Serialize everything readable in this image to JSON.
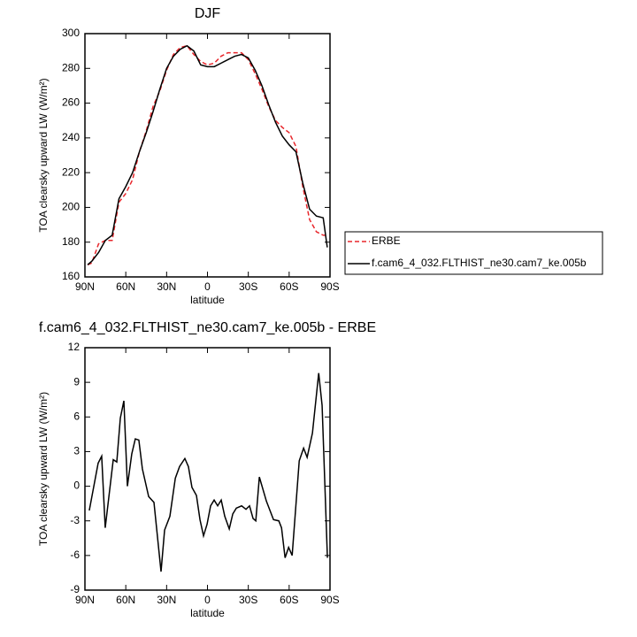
{
  "chart_data": [
    {
      "type": "line",
      "title": "DJF",
      "xlabel": "latitude",
      "ylabel": "TOA clearsky upward LW (W/m²)",
      "x": [
        88,
        85,
        80,
        75,
        70,
        65,
        60,
        55,
        50,
        45,
        40,
        35,
        30,
        25,
        20,
        15,
        10,
        5,
        0,
        -5,
        -10,
        -15,
        -20,
        -25,
        -30,
        -35,
        -40,
        -45,
        -50,
        -55,
        -60,
        -65,
        -70,
        -75,
        -80,
        -85,
        -88
      ],
      "series": [
        {
          "name": "ERBE",
          "color": "#e8262b",
          "dashed": true,
          "values": [
            167,
            168,
            179,
            181,
            181,
            203,
            208,
            216,
            232,
            244,
            258,
            267,
            279,
            288,
            292,
            293,
            288,
            284,
            282,
            283,
            287,
            289,
            289,
            289,
            285,
            277,
            268,
            258,
            250,
            246,
            243,
            235,
            212,
            193,
            186,
            184,
            184
          ]
        },
        {
          "name": "f.cam6_4_032.FLTHIST_ne30.cam7_ke.005b",
          "color": "#000000",
          "dashed": false,
          "values": [
            167,
            169,
            174,
            181,
            184,
            205,
            212,
            220,
            232,
            243,
            255,
            268,
            280,
            287,
            291,
            293,
            290,
            282,
            281,
            281,
            283,
            285,
            287,
            288,
            286,
            279,
            270,
            259,
            249,
            241,
            236,
            232,
            214,
            199,
            195,
            194,
            177
          ]
        }
      ],
      "xlim": [
        90,
        -90
      ],
      "xticks": [
        {
          "value": 90,
          "label": "90N"
        },
        {
          "value": 60,
          "label": "60N"
        },
        {
          "value": 30,
          "label": "30N"
        },
        0,
        {
          "value": -30,
          "label": "30S"
        },
        {
          "value": -60,
          "label": "60S"
        },
        {
          "value": -90,
          "label": "90S"
        }
      ],
      "ylim": [
        160,
        300
      ],
      "yticks": [
        160,
        180,
        200,
        220,
        240,
        260,
        280,
        300
      ],
      "legend": "outside-right"
    },
    {
      "type": "line",
      "title": "f.cam6_4_032.FLTHIST_ne30.cam7_ke.005b - ERBE",
      "xlabel": "latitude",
      "ylabel": "TOA clearsky upward LW (W/m²)",
      "x": [
        86.8,
        80.3,
        77.7,
        75.1,
        69.2,
        66.6,
        64.0,
        61.4,
        58.8,
        55.6,
        53.0,
        50.4,
        47.8,
        43.2,
        39.3,
        34.1,
        31.5,
        27.6,
        23.6,
        20.5,
        16.6,
        14.0,
        11.4,
        8.1,
        5.5,
        2.9,
        0.3,
        -2.3,
        -4.9,
        -7.5,
        -10.1,
        -12.7,
        -16.0,
        -18.6,
        -21.2,
        -25.1,
        -28.3,
        -30.9,
        -33.5,
        -35.5,
        -38.1,
        -43.3,
        -48.5,
        -52.4,
        -54.4,
        -57.0,
        -59.6,
        -62.2,
        -67.4,
        -70.6,
        -73.2,
        -77.1,
        -81.7,
        -84.2,
        -88.1
      ],
      "values": [
        -2.1,
        2.0,
        2.6,
        -3.6,
        2.3,
        2.1,
        5.9,
        7.4,
        0.0,
        2.8,
        4.1,
        4.0,
        1.5,
        -0.9,
        -1.4,
        -7.4,
        -3.8,
        -2.6,
        0.7,
        1.7,
        2.4,
        1.7,
        -0.1,
        -0.8,
        -2.9,
        -4.3,
        -3.3,
        -1.7,
        -1.2,
        -1.7,
        -1.2,
        -2.6,
        -3.7,
        -2.4,
        -1.9,
        -1.7,
        -2.0,
        -1.7,
        -2.8,
        -3.0,
        0.8,
        -1.3,
        -2.9,
        -3.0,
        -3.6,
        -6.2,
        -5.3,
        -6.0,
        2.2,
        3.3,
        2.5,
        4.6,
        9.8,
        7.0,
        -6.2
      ],
      "color": "#000000",
      "xlim": [
        90,
        -90
      ],
      "xticks": [
        {
          "value": 90,
          "label": "90N"
        },
        {
          "value": 60,
          "label": "60N"
        },
        {
          "value": 30,
          "label": "30N"
        },
        0,
        {
          "value": -30,
          "label": "30S"
        },
        {
          "value": -60,
          "label": "60S"
        },
        {
          "value": -90,
          "label": "90S"
        }
      ],
      "ylim": [
        -9,
        12
      ],
      "yticks": [
        -9,
        -6,
        -3,
        0,
        3,
        6,
        9,
        12
      ]
    }
  ]
}
